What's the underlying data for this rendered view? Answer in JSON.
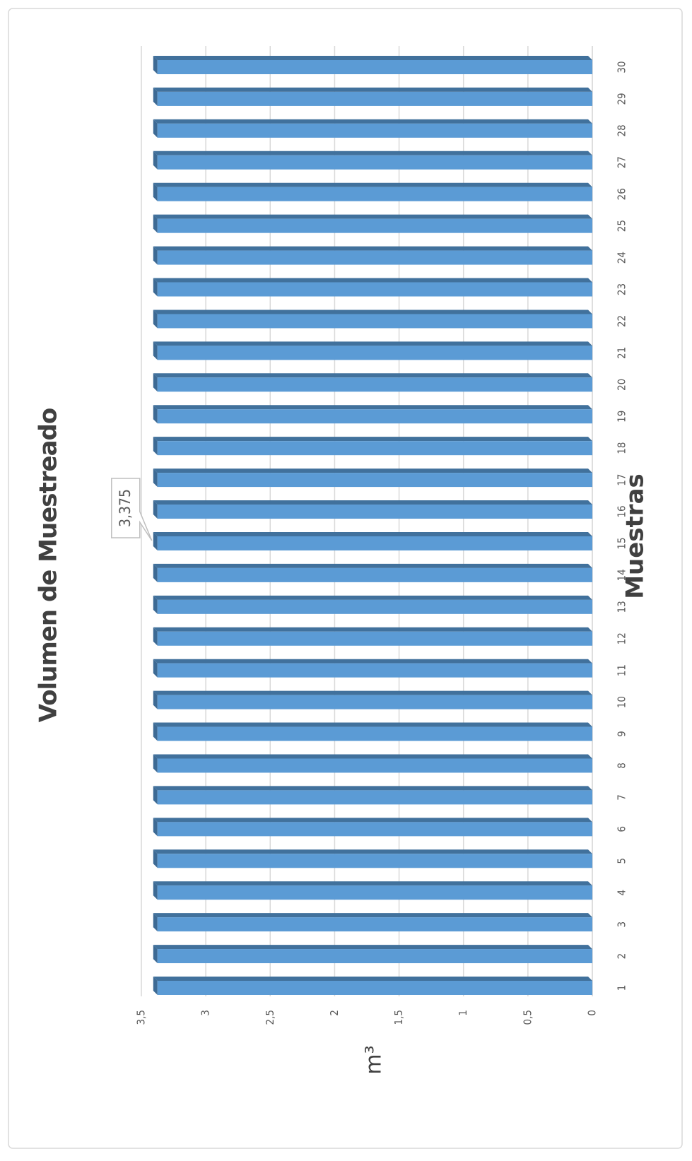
{
  "chart_data": {
    "type": "bar",
    "title": "Volumen de Muestreado",
    "x_label": "Muestras",
    "y_label": "m³",
    "categories": [
      "1",
      "2",
      "3",
      "4",
      "5",
      "6",
      "7",
      "8",
      "9",
      "10",
      "11",
      "12",
      "13",
      "14",
      "15",
      "16",
      "17",
      "18",
      "19",
      "20",
      "21",
      "22",
      "23",
      "24",
      "25",
      "26",
      "27",
      "28",
      "29",
      "30"
    ],
    "values": [
      3.375,
      3.375,
      3.375,
      3.375,
      3.375,
      3.375,
      3.375,
      3.375,
      3.375,
      3.375,
      3.375,
      3.375,
      3.375,
      3.375,
      3.375,
      3.375,
      3.375,
      3.375,
      3.375,
      3.375,
      3.375,
      3.375,
      3.375,
      3.375,
      3.375,
      3.375,
      3.375,
      3.375,
      3.375,
      3.375
    ],
    "annotations": [
      {
        "index": 14,
        "value_label": "3,375"
      }
    ],
    "color": "#5b9bd5",
    "ylim": [
      0,
      3.5
    ],
    "yticks": [
      0,
      {
        "value": 0.5,
        "label": "0,5"
      },
      1,
      {
        "value": 1.5,
        "label": "1,5"
      },
      2,
      {
        "value": 2.5,
        "label": "2,5"
      },
      3,
      {
        "value": 3.5,
        "label": "3,5"
      }
    ],
    "grid": true
  }
}
